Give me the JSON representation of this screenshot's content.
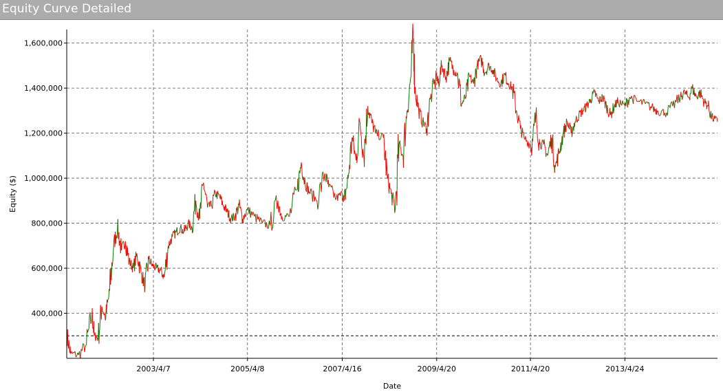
{
  "window": {
    "title": "Equity Curve Detailed"
  },
  "chart_data": {
    "type": "line",
    "title": "Equity Curve Detailed",
    "xlabel": "Date",
    "ylabel": "Equity ($)",
    "x_ticks": [
      "2003/4/7",
      "2005/4/8",
      "2007/4/16",
      "2009/4/20",
      "2011/4/20",
      "2013/4/24"
    ],
    "y_ticks": [
      {
        "value": 400000,
        "label": "400,000"
      },
      {
        "value": 600000,
        "label": "600,000"
      },
      {
        "value": 800000,
        "label": "800,000"
      },
      {
        "value": 1000000,
        "label": "1,000,000"
      },
      {
        "value": 1200000,
        "label": "1,200,000"
      },
      {
        "value": 1400000,
        "label": "1,400,000"
      },
      {
        "value": 1600000,
        "label": "1,600,000"
      }
    ],
    "ylim": [
      200000,
      1660000
    ],
    "xlim": [
      "2001/6/1",
      "2015/4/15"
    ],
    "grid": true,
    "reference_line": 300000,
    "colors": {
      "up": "#008000",
      "down": "#ff0000",
      "grid": "#555555",
      "axis": "#000000"
    },
    "series": [
      {
        "values": [
          [
            "2001/6/1",
            310000
          ],
          [
            "2001/7/1",
            220000
          ],
          [
            "2001/9/1",
            215000
          ],
          [
            "2001/11/1",
            260000
          ],
          [
            "2001/12/15",
            400000
          ],
          [
            "2002/1/1",
            300000
          ],
          [
            "2002/2/1",
            290000
          ],
          [
            "2002/3/1",
            430000
          ],
          [
            "2002/4/1",
            380000
          ],
          [
            "2002/5/1",
            500000
          ],
          [
            "2002/6/1",
            700000
          ],
          [
            "2002/7/1",
            780000
          ],
          [
            "2002/8/1",
            680000
          ],
          [
            "2002/9/1",
            720000
          ],
          [
            "2002/10/1",
            630000
          ],
          [
            "2002/11/1",
            600000
          ],
          [
            "2002/12/1",
            660000
          ],
          [
            "2003/1/1",
            580000
          ],
          [
            "2003/2/1",
            520000
          ],
          [
            "2003/3/1",
            640000
          ],
          [
            "2003/4/1",
            610000
          ],
          [
            "2003/5/1",
            600000
          ],
          [
            "2003/6/1",
            590000
          ],
          [
            "2003/7/1",
            560000
          ],
          [
            "2003/8/1",
            700000
          ],
          [
            "2003/9/1",
            740000
          ],
          [
            "2003/10/1",
            760000
          ],
          [
            "2003/11/1",
            780000
          ],
          [
            "2003/12/1",
            760000
          ],
          [
            "2004/1/1",
            800000
          ],
          [
            "2004/2/1",
            780000
          ],
          [
            "2004/3/1",
            900000
          ],
          [
            "2004/4/1",
            820000
          ],
          [
            "2004/5/1",
            980000
          ],
          [
            "2004/6/1",
            870000
          ],
          [
            "2004/7/1",
            880000
          ],
          [
            "2004/8/1",
            930000
          ],
          [
            "2004/9/1",
            920000
          ],
          [
            "2004/10/1",
            880000
          ],
          [
            "2004/11/1",
            850000
          ],
          [
            "2004/12/1",
            820000
          ],
          [
            "2005/1/1",
            830000
          ],
          [
            "2005/2/1",
            880000
          ],
          [
            "2005/3/1",
            820000
          ],
          [
            "2005/4/8",
            860000
          ],
          [
            "2005/6/1",
            830000
          ],
          [
            "2005/8/1",
            800000
          ],
          [
            "2005/10/1",
            790000
          ],
          [
            "2005/12/1",
            900000
          ],
          [
            "2006/1/1",
            830000
          ],
          [
            "2006/3/1",
            830000
          ],
          [
            "2006/5/1",
            950000
          ],
          [
            "2006/6/1",
            1070000
          ],
          [
            "2006/7/1",
            980000
          ],
          [
            "2006/8/1",
            940000
          ],
          [
            "2006/10/1",
            900000
          ],
          [
            "2006/12/1",
            1020000
          ],
          [
            "2007/1/1",
            960000
          ],
          [
            "2007/3/1",
            910000
          ],
          [
            "2007/4/16",
            930000
          ],
          [
            "2007/5/1",
            900000
          ],
          [
            "2007/6/1",
            1000000
          ],
          [
            "2007/7/1",
            1180000
          ],
          [
            "2007/8/1",
            1080000
          ],
          [
            "2007/9/1",
            1250000
          ],
          [
            "2007/10/1",
            1100000
          ],
          [
            "2007/11/1",
            1320000
          ],
          [
            "2007/12/1",
            1250000
          ],
          [
            "2008/1/1",
            1200000
          ],
          [
            "2008/3/1",
            1180000
          ],
          [
            "2008/4/1",
            1000000
          ],
          [
            "2008/5/1",
            930000
          ],
          [
            "2008/6/1",
            860000
          ],
          [
            "2008/7/1",
            1150000
          ],
          [
            "2008/8/1",
            1100000
          ],
          [
            "2008/9/1",
            1300000
          ],
          [
            "2008/10/1",
            1450000
          ],
          [
            "2008/10/20",
            1650000
          ],
          [
            "2008/11/1",
            1400000
          ],
          [
            "2008/12/1",
            1300000
          ],
          [
            "2009/1/1",
            1250000
          ],
          [
            "2009/2/1",
            1220000
          ],
          [
            "2009/3/1",
            1350000
          ],
          [
            "2009/4/20",
            1450000
          ],
          [
            "2009/5/1",
            1420000
          ],
          [
            "2009/6/1",
            1500000
          ],
          [
            "2009/7/1",
            1450000
          ],
          [
            "2009/8/1",
            1520000
          ],
          [
            "2009/9/1",
            1480000
          ],
          [
            "2009/10/1",
            1460000
          ],
          [
            "2009/11/1",
            1330000
          ],
          [
            "2009/12/1",
            1360000
          ],
          [
            "2010/1/1",
            1450000
          ],
          [
            "2010/2/1",
            1420000
          ],
          [
            "2010/3/1",
            1500000
          ],
          [
            "2010/4/1",
            1530000
          ],
          [
            "2010/5/1",
            1470000
          ],
          [
            "2010/6/1",
            1500000
          ],
          [
            "2010/7/1",
            1480000
          ],
          [
            "2010/8/1",
            1440000
          ],
          [
            "2010/9/1",
            1420000
          ],
          [
            "2010/10/1",
            1460000
          ],
          [
            "2010/11/1",
            1420000
          ],
          [
            "2010/12/1",
            1400000
          ],
          [
            "2011/1/1",
            1300000
          ],
          [
            "2011/2/1",
            1220000
          ],
          [
            "2011/3/1",
            1180000
          ],
          [
            "2011/4/20",
            1150000
          ],
          [
            "2011/5/1",
            1120000
          ],
          [
            "2011/6/1",
            1280000
          ],
          [
            "2011/7/1",
            1150000
          ],
          [
            "2011/8/1",
            1150000
          ],
          [
            "2011/9/1",
            1100000
          ],
          [
            "2011/10/1",
            1180000
          ],
          [
            "2011/11/1",
            1050000
          ],
          [
            "2011/12/1",
            1120000
          ],
          [
            "2012/1/1",
            1200000
          ],
          [
            "2012/2/1",
            1250000
          ],
          [
            "2012/3/1",
            1200000
          ],
          [
            "2012/4/1",
            1250000
          ],
          [
            "2012/5/1",
            1280000
          ],
          [
            "2012/6/1",
            1300000
          ],
          [
            "2012/7/1",
            1320000
          ],
          [
            "2012/8/1",
            1350000
          ],
          [
            "2012/9/1",
            1380000
          ],
          [
            "2012/10/1",
            1340000
          ],
          [
            "2012/11/1",
            1360000
          ],
          [
            "2012/12/1",
            1320000
          ],
          [
            "2013/1/1",
            1280000
          ],
          [
            "2013/2/1",
            1320000
          ],
          [
            "2013/3/1",
            1340000
          ],
          [
            "2013/4/24",
            1320000
          ],
          [
            "2013/6/1",
            1360000
          ],
          [
            "2013/8/1",
            1340000
          ],
          [
            "2013/10/1",
            1330000
          ],
          [
            "2013/12/1",
            1310000
          ],
          [
            "2014/1/1",
            1300000
          ],
          [
            "2014/3/1",
            1290000
          ],
          [
            "2014/5/1",
            1320000
          ],
          [
            "2014/7/1",
            1360000
          ],
          [
            "2014/8/1",
            1380000
          ],
          [
            "2014/9/1",
            1360000
          ],
          [
            "2014/10/1",
            1400000
          ],
          [
            "2014/11/1",
            1360000
          ],
          [
            "2014/12/1",
            1380000
          ],
          [
            "2015/1/1",
            1340000
          ],
          [
            "2015/2/1",
            1320000
          ],
          [
            "2015/3/1",
            1270000
          ],
          [
            "2015/4/15",
            1250000
          ]
        ]
      }
    ]
  }
}
